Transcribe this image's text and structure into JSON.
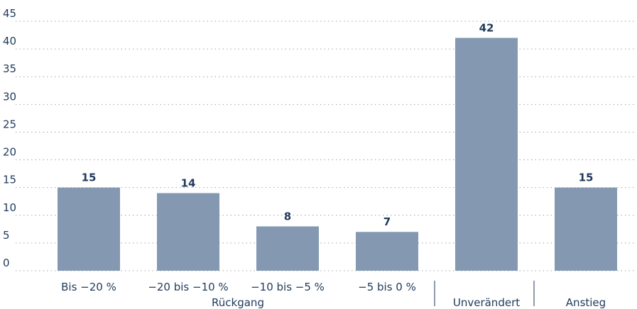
{
  "chart_data": {
    "type": "bar",
    "categories": [
      "Bis −20 %",
      "−20 bis −10 %",
      "−10 bis −5 %",
      "−5 bis 0 %",
      "Unverändert",
      "Anstieg"
    ],
    "values": [
      15,
      14,
      8,
      7,
      42,
      15
    ],
    "group_label": "Rückgang",
    "color": "#8499b1",
    "ylim": [
      0,
      45
    ],
    "yticks": [
      0,
      5,
      10,
      15,
      20,
      25,
      30,
      35,
      40,
      45
    ],
    "grid": true
  }
}
